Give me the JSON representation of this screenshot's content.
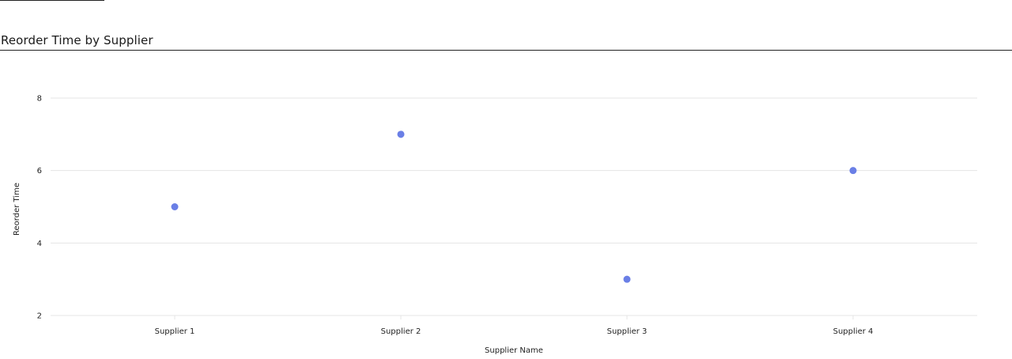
{
  "header": {
    "title": "Reorder Time by Supplier"
  },
  "colors": {
    "point": "#6a7fe6",
    "grid": "#e4e4e4",
    "text": "#222222"
  },
  "chart_data": {
    "type": "scatter",
    "title": "Reorder Time by Supplier",
    "xlabel": "Supplier Name",
    "ylabel": "Reorder Time",
    "categories": [
      "Supplier 1",
      "Supplier 2",
      "Supplier 3",
      "Supplier 4"
    ],
    "series": [
      {
        "values": [
          5,
          7,
          3,
          6
        ]
      }
    ],
    "ylim": [
      2,
      8
    ],
    "yticks": [
      2,
      4,
      6,
      8
    ],
    "grid": true,
    "legend": "none"
  }
}
